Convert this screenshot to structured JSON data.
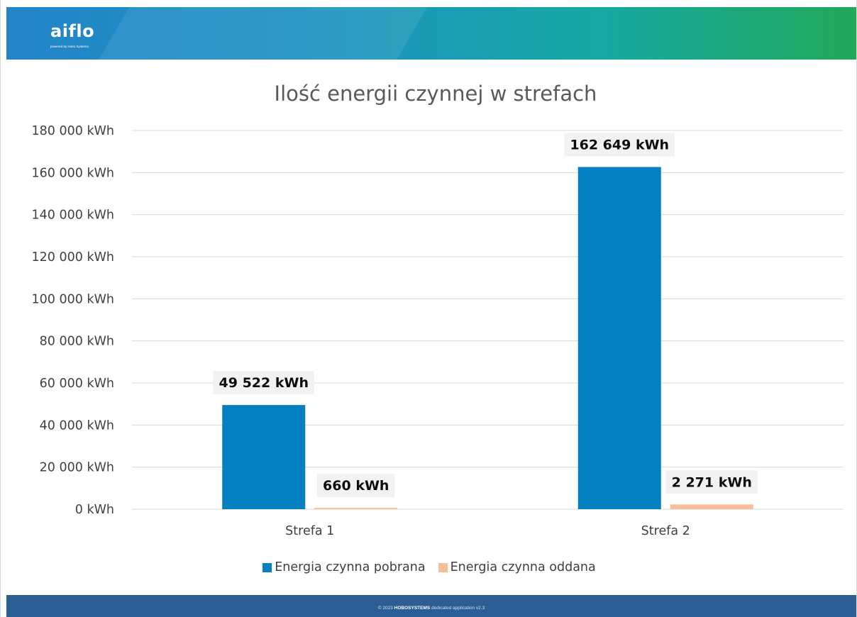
{
  "header": {
    "logo_text": "aiflo",
    "logo_subtitle": "powered by Hobo Systems"
  },
  "footer": {
    "prefix": "© 2023",
    "brand": "HOBOSYSTEMS",
    "suffix": "dedicated application v2.3"
  },
  "colors": {
    "pobrana": "#0380bf",
    "oddana": "#f8be98",
    "grid": "#d9d9d9"
  },
  "chart_data": {
    "type": "bar",
    "title": "Ilość energii czynnej w strefach",
    "categories": [
      "Strefa 1",
      "Strefa 2"
    ],
    "series": [
      {
        "name": "Energia czynna pobrana",
        "values": [
          49522,
          162649
        ],
        "labels": [
          "49 522 kWh",
          "162 649 kWh"
        ]
      },
      {
        "name": "Energia czynna oddana",
        "values": [
          660,
          2271
        ],
        "labels": [
          "660 kWh",
          "2 271 kWh"
        ]
      }
    ],
    "ylim": [
      0,
      180000
    ],
    "yticks": [
      0,
      20000,
      40000,
      60000,
      80000,
      100000,
      120000,
      140000,
      160000,
      180000
    ],
    "ytick_labels": [
      "0 kWh",
      "20 000 kWh",
      "40 000 kWh",
      "60 000 kWh",
      "80 000 kWh",
      "100 000 kWh",
      "120 000 kWh",
      "140 000 kWh",
      "160 000 kWh",
      "180 000 kWh"
    ],
    "xlabel": "",
    "ylabel": "",
    "grid": true,
    "legend": "bottom"
  }
}
